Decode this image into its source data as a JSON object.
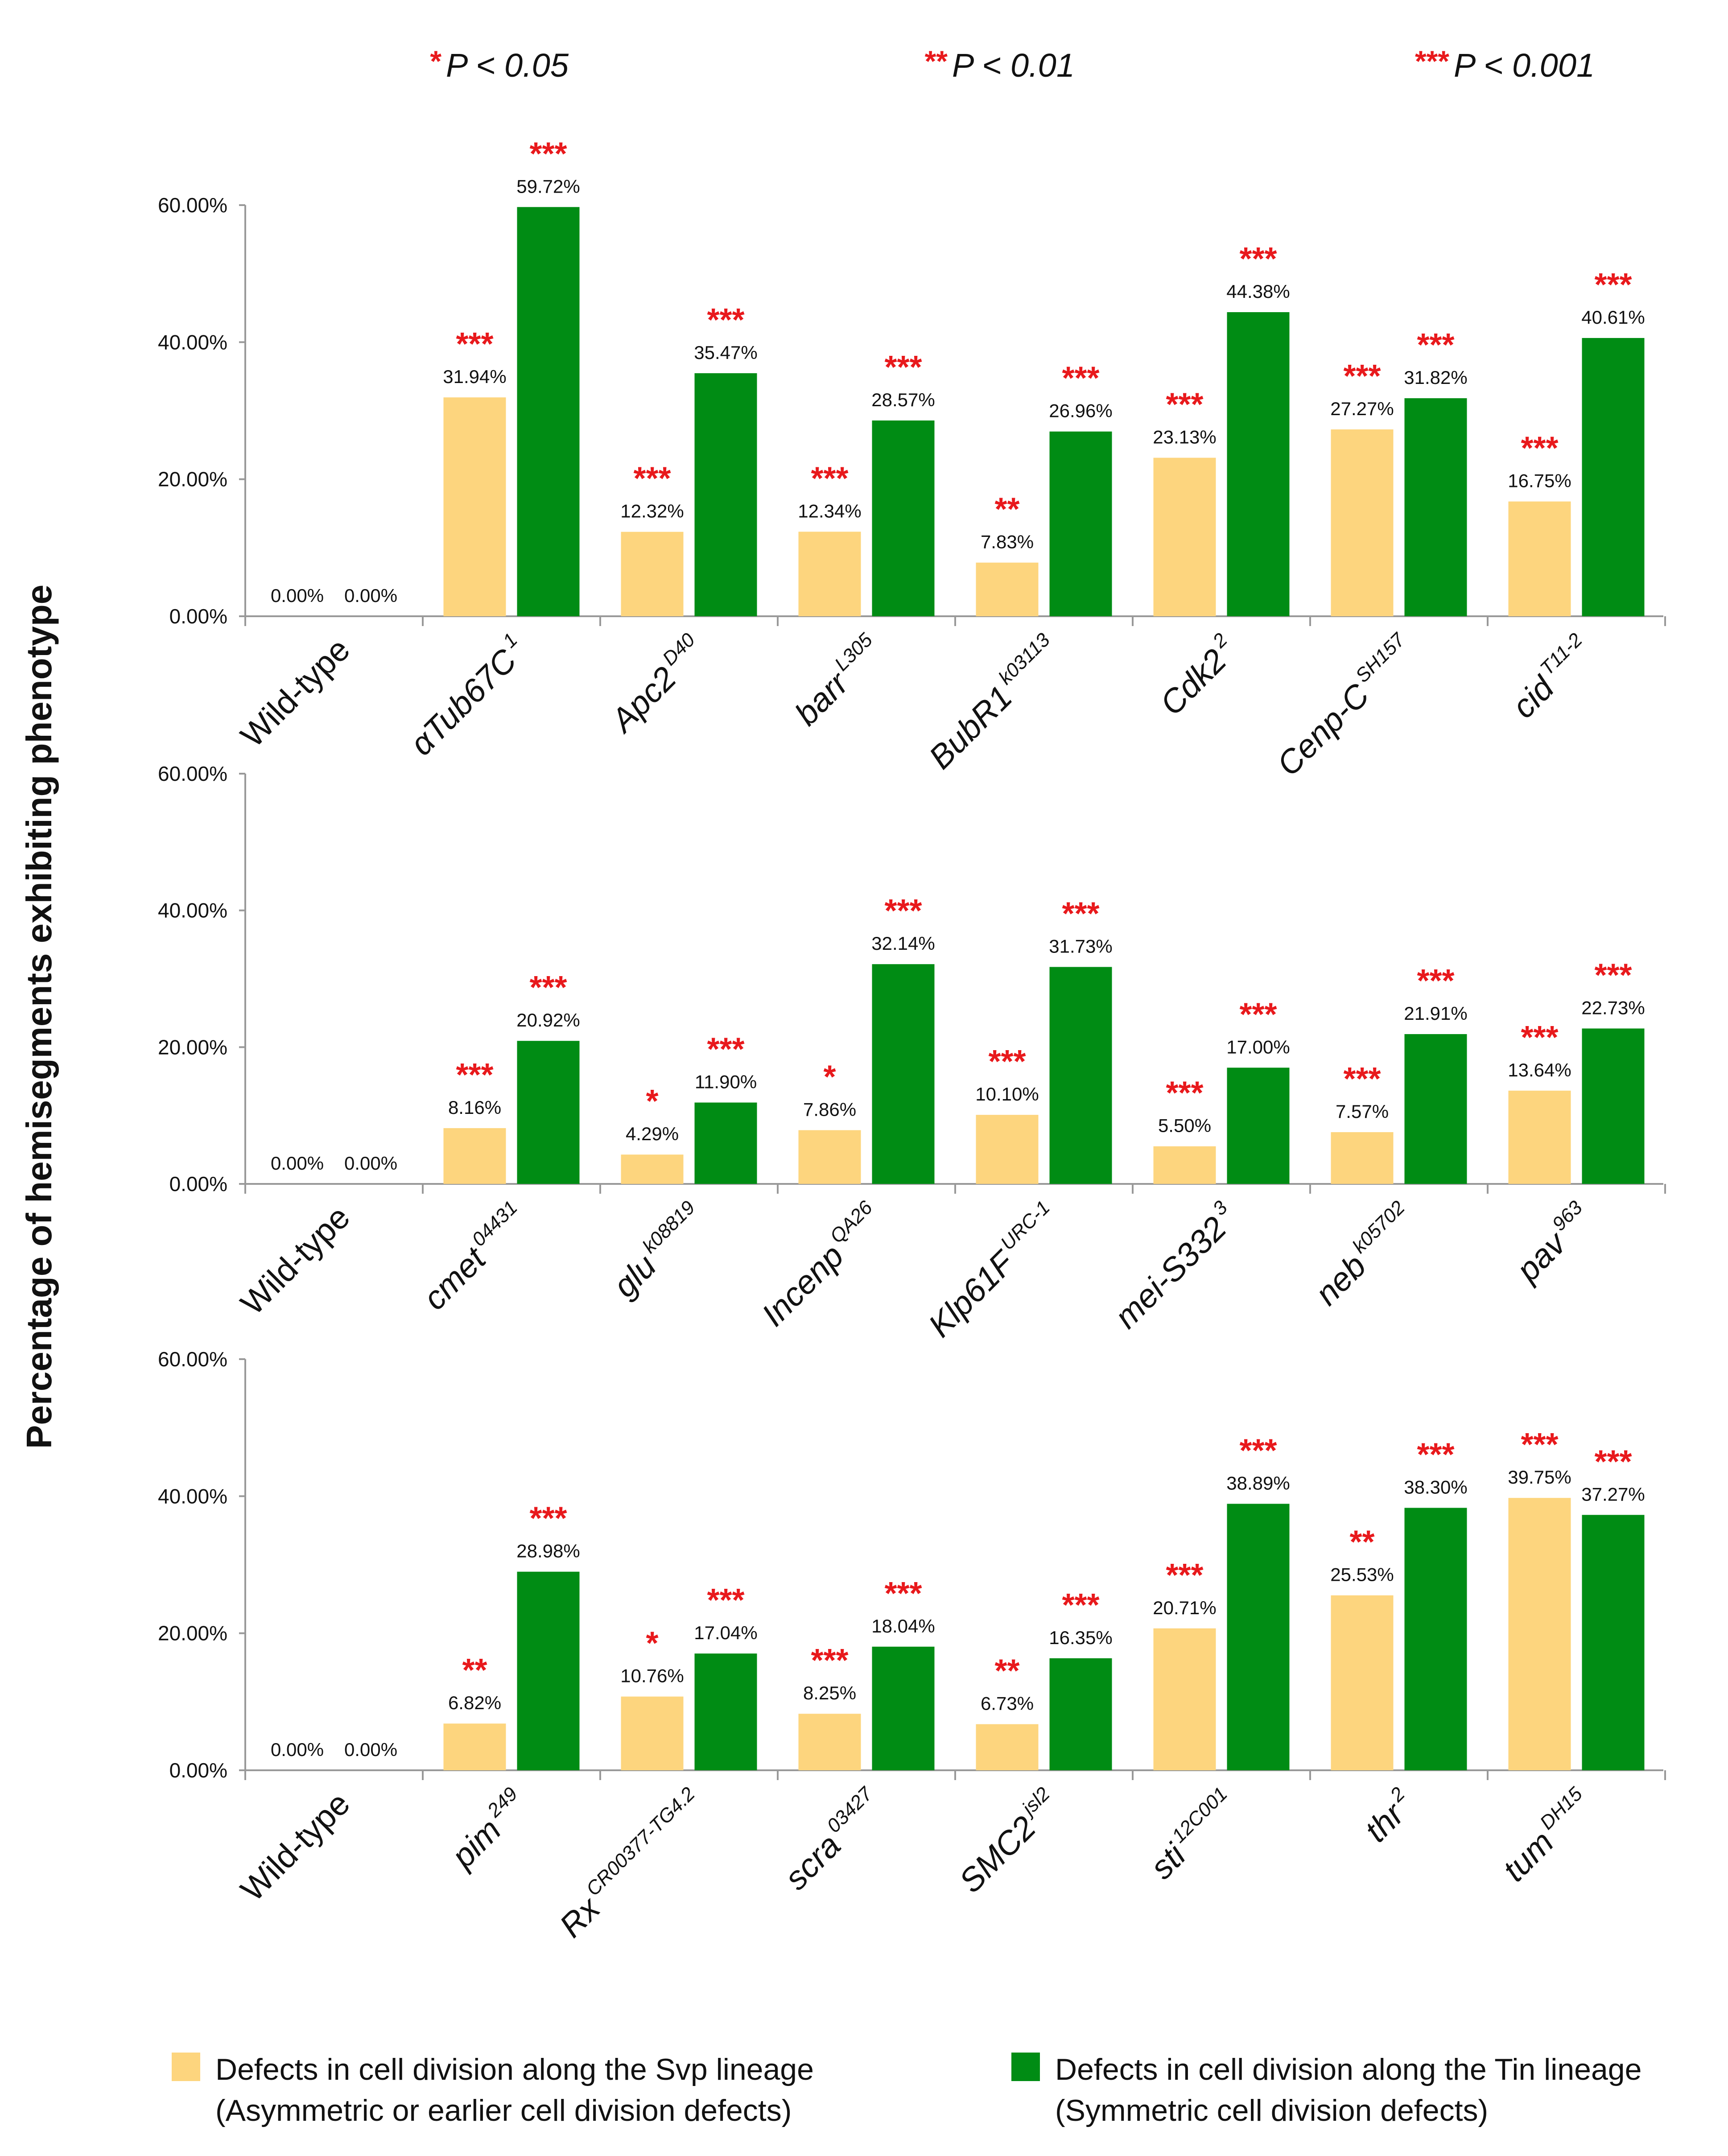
{
  "significance_key": [
    {
      "stars": "*",
      "label": "P < 0.05"
    },
    {
      "stars": "**",
      "label": "P < 0.01"
    },
    {
      "stars": "***",
      "label": "P < 0.001"
    }
  ],
  "y_axis_title": "Percentage of hemisegments exhibiting phenotype",
  "legend": [
    {
      "name": "Defects in cell division along the Svp lineage",
      "sub": "(Asymmetric or earlier cell division defects)",
      "color": "#FDD57E"
    },
    {
      "name": "Defects in cell division along the Tin lineage",
      "sub": "(Symmetric cell division defects)",
      "color": "#008C14"
    }
  ],
  "colors": {
    "svp": "#FDD57E",
    "tin": "#008C14",
    "star": "#E8191C",
    "axis": "#999999",
    "text": "#111111"
  },
  "chart_data": [
    {
      "type": "bar",
      "ylim": [
        0,
        60
      ],
      "yticks": [
        "0.00%",
        "20.00%",
        "40.00%",
        "60.00%"
      ],
      "series_names": [
        "Svp lineage",
        "Tin lineage"
      ],
      "categories": [
        {
          "name": "Wild-type",
          "sup": ""
        },
        {
          "name": "αTub67C",
          "sup": "1"
        },
        {
          "name": "Apc2",
          "sup": "D40"
        },
        {
          "name": "barr",
          "sup": "L305"
        },
        {
          "name": "BubR1",
          "sup": "k03113"
        },
        {
          "name": "Cdk2",
          "sup": "2"
        },
        {
          "name": "Cenp-C",
          "sup": "SH157"
        },
        {
          "name": "cid",
          "sup": "T11-2"
        }
      ],
      "svp": [
        0,
        31.94,
        12.32,
        12.34,
        7.83,
        23.13,
        27.27,
        16.75
      ],
      "tin": [
        0,
        59.72,
        35.47,
        28.57,
        26.96,
        44.38,
        31.82,
        40.61
      ],
      "svp_labels": [
        "0.00%",
        "31.94%",
        "12.32%",
        "12.34%",
        "7.83%",
        "23.13%",
        "27.27%",
        "16.75%"
      ],
      "tin_labels": [
        "0.00%",
        "59.72%",
        "35.47%",
        "28.57%",
        "26.96%",
        "44.38%",
        "31.82%",
        "40.61%"
      ],
      "svp_sig": [
        "",
        "***",
        "***",
        "***",
        "**",
        "***",
        "***",
        "***"
      ],
      "tin_sig": [
        "",
        "***",
        "***",
        "***",
        "***",
        "***",
        "***",
        "***"
      ]
    },
    {
      "type": "bar",
      "ylim": [
        0,
        60
      ],
      "yticks": [
        "0.00%",
        "20.00%",
        "40.00%",
        "60.00%"
      ],
      "series_names": [
        "Svp lineage",
        "Tin lineage"
      ],
      "categories": [
        {
          "name": "Wild-type",
          "sup": ""
        },
        {
          "name": "cmet",
          "sup": "04431"
        },
        {
          "name": "glu",
          "sup": "k08819"
        },
        {
          "name": "Incenp",
          "sup": "QA26"
        },
        {
          "name": "Klp61F",
          "sup": "URC-1"
        },
        {
          "name": "mei-S332",
          "sup": "3"
        },
        {
          "name": "neb",
          "sup": "k05702"
        },
        {
          "name": "pav",
          "sup": "963"
        }
      ],
      "svp": [
        0,
        8.16,
        4.29,
        7.86,
        10.1,
        5.5,
        7.57,
        13.64
      ],
      "tin": [
        0,
        20.92,
        11.9,
        32.14,
        31.73,
        17.0,
        21.91,
        22.73
      ],
      "svp_labels": [
        "0.00%",
        "8.16%",
        "4.29%",
        "7.86%",
        "10.10%",
        "5.50%",
        "7.57%",
        "13.64%"
      ],
      "tin_labels": [
        "0.00%",
        "20.92%",
        "11.90%",
        "32.14%",
        "31.73%",
        "17.00%",
        "21.91%",
        "22.73%"
      ],
      "svp_sig": [
        "",
        "***",
        "*",
        "*",
        "***",
        "***",
        "***",
        "***"
      ],
      "tin_sig": [
        "",
        "***",
        "***",
        "***",
        "***",
        "***",
        "***",
        "***"
      ]
    },
    {
      "type": "bar",
      "ylim": [
        0,
        60
      ],
      "yticks": [
        "0.00%",
        "20.00%",
        "40.00%",
        "60.00%"
      ],
      "series_names": [
        "Svp lineage",
        "Tin lineage"
      ],
      "categories": [
        {
          "name": "Wild-type",
          "sup": ""
        },
        {
          "name": "pim",
          "sup": "249"
        },
        {
          "name": "Rx",
          "sup": "CR00377-TG4.2"
        },
        {
          "name": "scra",
          "sup": "03427"
        },
        {
          "name": "SMC2",
          "sup": "jsl2"
        },
        {
          "name": "sti",
          "sup": "12C001"
        },
        {
          "name": "thr",
          "sup": "2"
        },
        {
          "name": "tum",
          "sup": "DH15"
        }
      ],
      "svp": [
        0,
        6.82,
        10.76,
        8.25,
        6.73,
        20.71,
        25.53,
        39.75
      ],
      "tin": [
        0,
        28.98,
        17.04,
        18.04,
        16.35,
        38.89,
        38.3,
        37.27
      ],
      "svp_labels": [
        "0.00%",
        "6.82%",
        "10.76%",
        "8.25%",
        "6.73%",
        "20.71%",
        "25.53%",
        "39.75%"
      ],
      "tin_labels": [
        "0.00%",
        "28.98%",
        "17.04%",
        "18.04%",
        "16.35%",
        "38.89%",
        "38.30%",
        "37.27%"
      ],
      "svp_sig": [
        "",
        "**",
        "*",
        "***",
        "**",
        "***",
        "**",
        "***"
      ],
      "tin_sig": [
        "",
        "***",
        "***",
        "***",
        "***",
        "***",
        "***",
        "***"
      ]
    }
  ]
}
